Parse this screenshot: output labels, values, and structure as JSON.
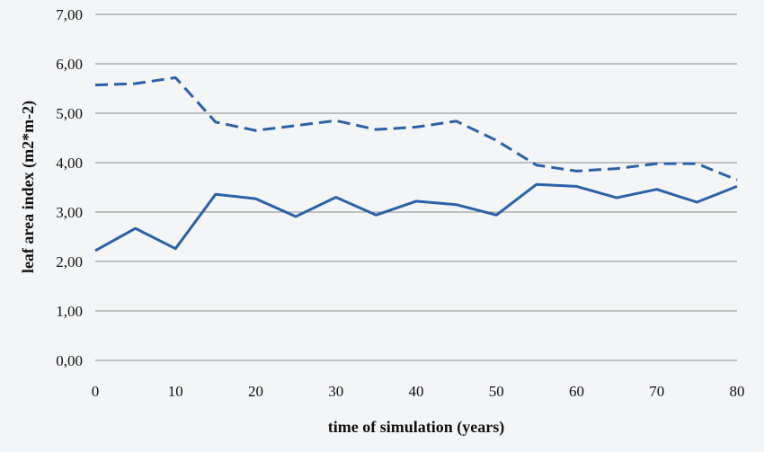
{
  "chart_data": {
    "type": "line",
    "title": "",
    "xlabel": "time of simulation (years)",
    "ylabel": "leaf area index (m2*m-2)",
    "x": [
      0,
      5,
      10,
      15,
      20,
      25,
      30,
      35,
      40,
      45,
      50,
      55,
      60,
      65,
      70,
      75,
      80
    ],
    "xlim": [
      0,
      80
    ],
    "ylim": [
      0,
      7
    ],
    "x_ticks": [
      0,
      10,
      20,
      30,
      40,
      50,
      60,
      70,
      80
    ],
    "x_tick_labels": [
      "0",
      "10",
      "20",
      "30",
      "40",
      "50",
      "60",
      "70",
      "80"
    ],
    "y_ticks": [
      0,
      1,
      2,
      3,
      4,
      5,
      6,
      7
    ],
    "y_tick_labels": [
      "0,00",
      "1,00",
      "2,00",
      "3,00",
      "4,00",
      "5,00",
      "6,00",
      "7,00"
    ],
    "grid": true,
    "legend": "none",
    "series": [
      {
        "style": "dashed",
        "color": "#2a62a8",
        "values": [
          5.57,
          5.6,
          5.72,
          4.82,
          4.65,
          4.75,
          4.85,
          4.67,
          4.72,
          4.84,
          4.45,
          3.95,
          3.83,
          3.88,
          3.98,
          3.98,
          3.65
        ]
      },
      {
        "style": "solid",
        "color": "#2a62a8",
        "values": [
          2.22,
          2.67,
          2.26,
          3.36,
          3.27,
          2.91,
          3.3,
          2.94,
          3.22,
          3.15,
          2.94,
          3.56,
          3.52,
          3.29,
          3.46,
          3.2,
          3.52
        ]
      }
    ]
  }
}
